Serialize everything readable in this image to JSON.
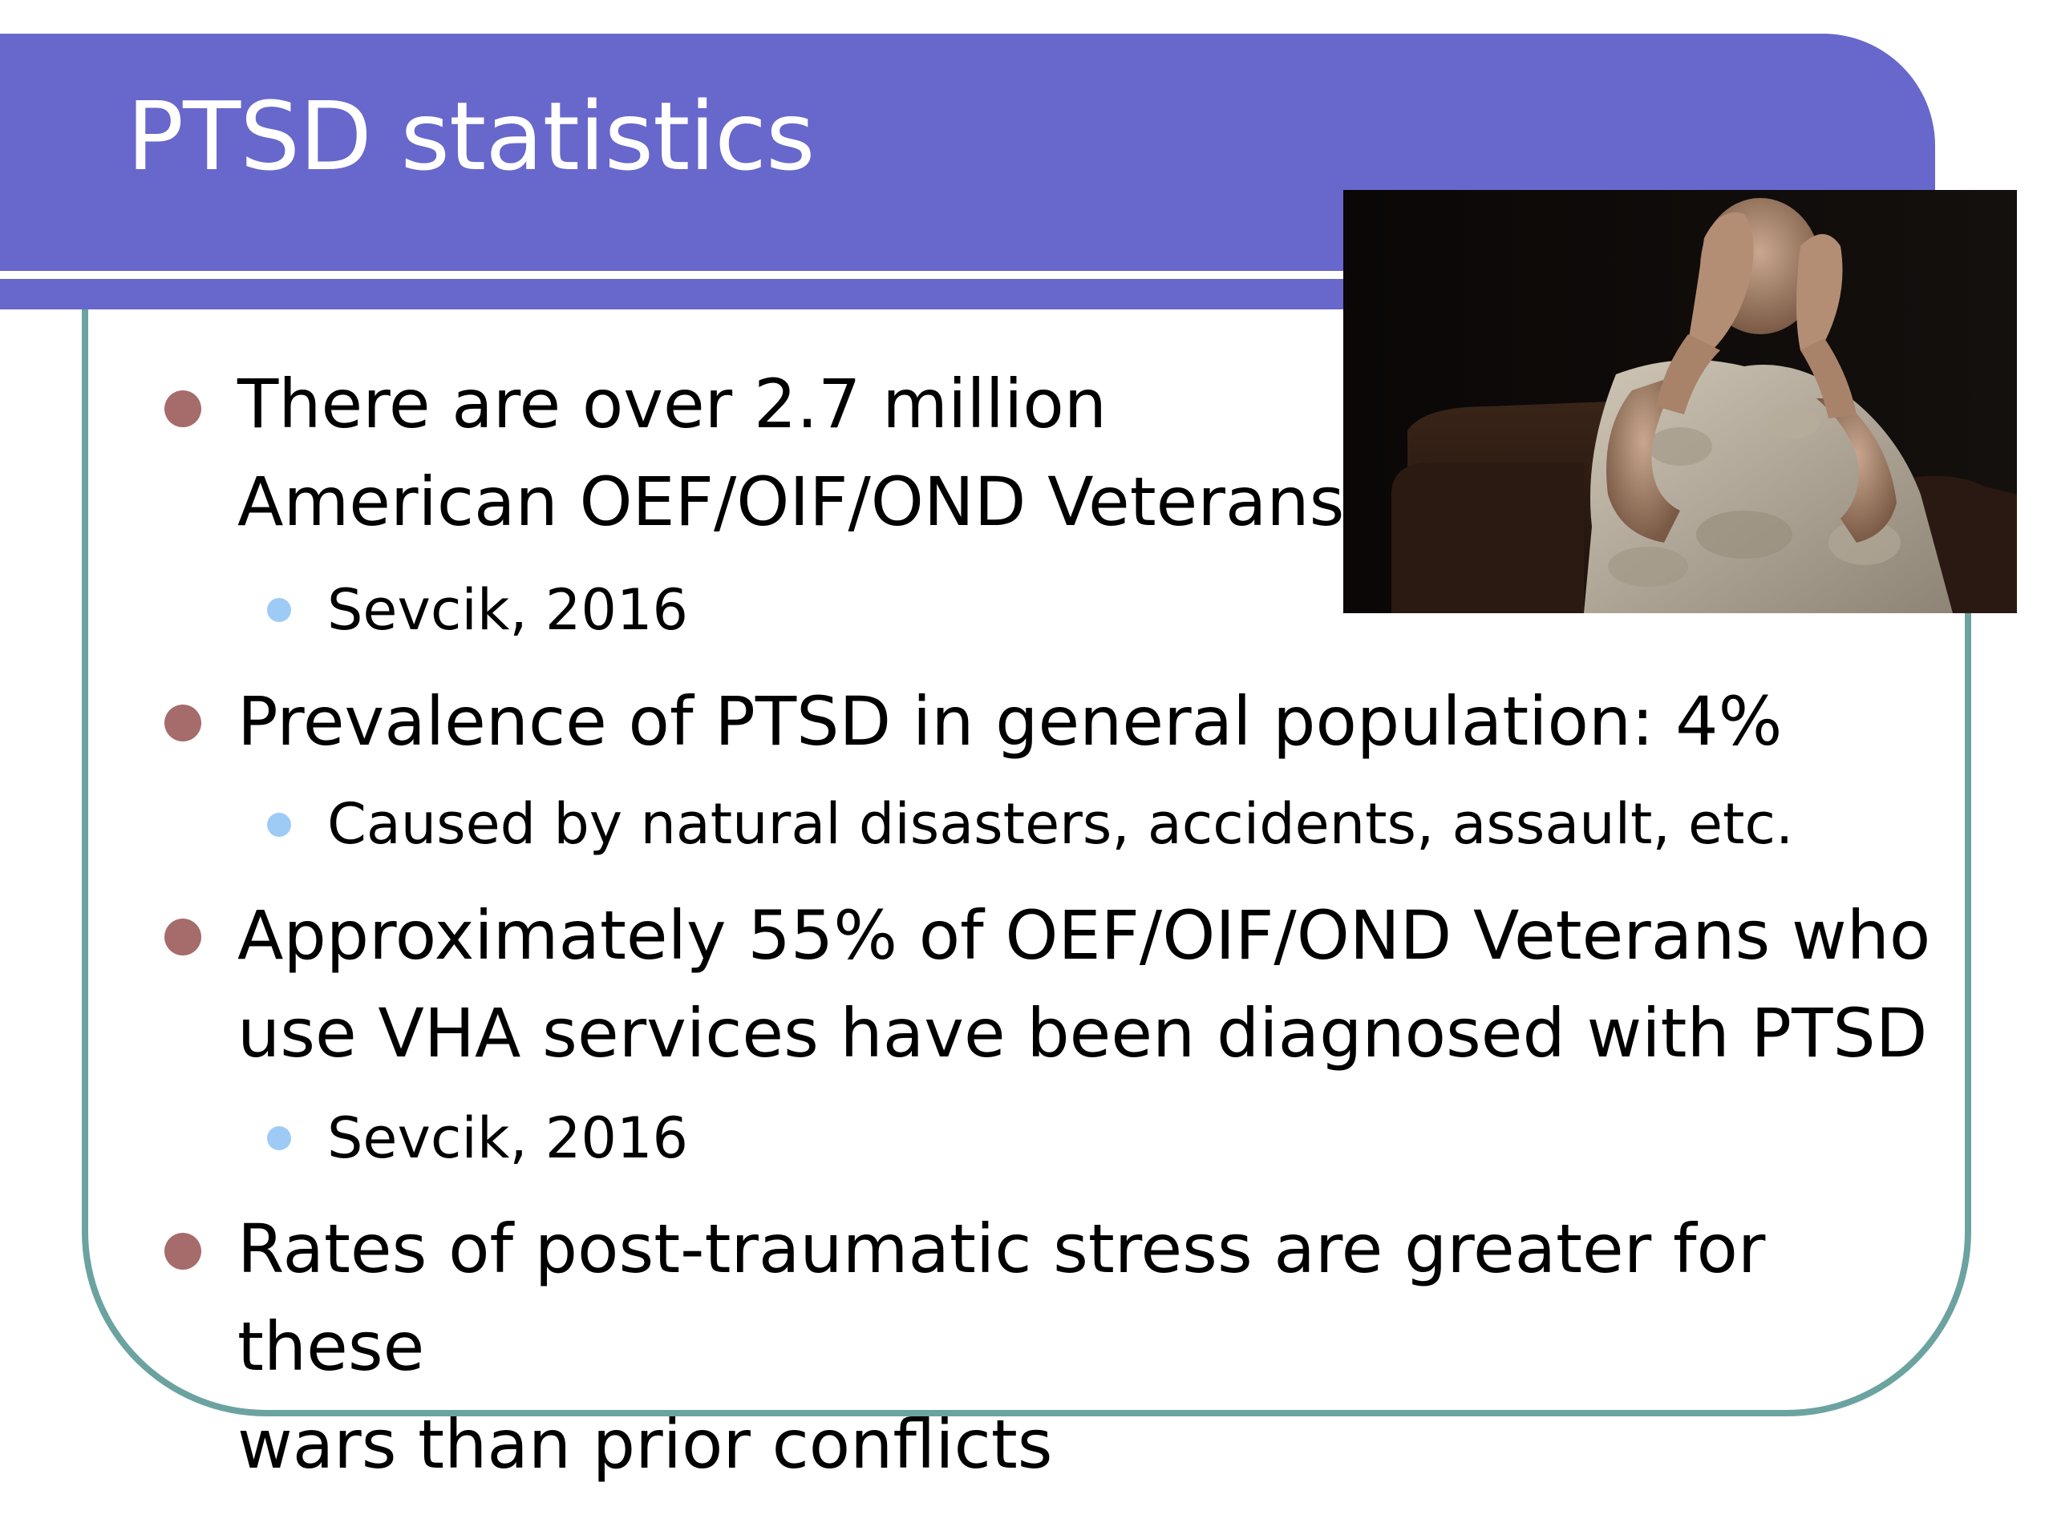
{
  "slide": {
    "title": "PTSD statistics",
    "image": {
      "icon": "distressed-soldier-photo"
    },
    "bullets": [
      {
        "text": "There are over 2.7 million American OEF/OIF/OND Veterans",
        "line1": "There are over 2.7 million",
        "line2": "American OEF/OIF/OND Veterans"
      },
      {
        "text": "Sevcik, 2016"
      },
      {
        "text": "Prevalence of PTSD in general population: 4%"
      },
      {
        "text": "Caused by natural disasters, accidents, assault, etc."
      },
      {
        "line1": "Approximately 55% of OEF/OIF/OND Veterans who",
        "line2": "use VHA services have been diagnosed with PTSD"
      },
      {
        "text": "Sevcik, 2016"
      },
      {
        "line1": "Rates of post-traumatic stress are greater for these",
        "line2": "wars than prior conflicts"
      }
    ],
    "colors": {
      "header": "#6767cc",
      "frame": "#6ba3a0",
      "bullet_level1": "#a66b6b",
      "bullet_level2": "#9ecbf5"
    }
  }
}
